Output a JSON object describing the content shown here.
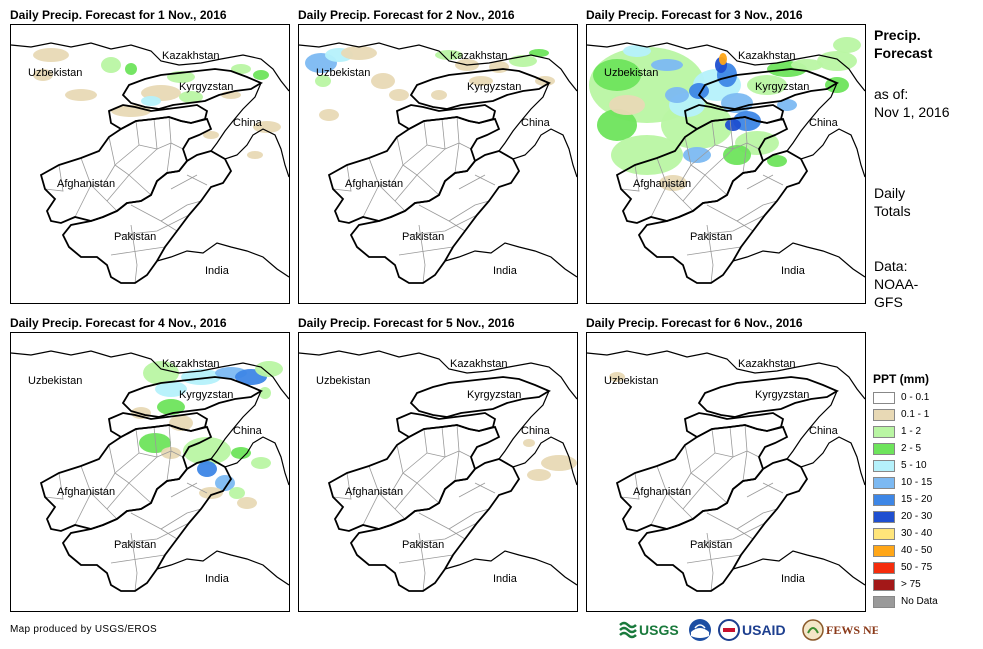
{
  "panels": [
    {
      "title": "Daily Precip. Forecast for 1 Nov., 2016",
      "precip": "d1"
    },
    {
      "title": "Daily Precip. Forecast for 2 Nov., 2016",
      "precip": "d2"
    },
    {
      "title": "Daily Precip. Forecast for 3 Nov., 2016",
      "precip": "d3"
    },
    {
      "title": "Daily Precip. Forecast for 4 Nov., 2016",
      "precip": "d4"
    },
    {
      "title": "Daily Precip. Forecast for 5 Nov., 2016",
      "precip": "d5"
    },
    {
      "title": "Daily Precip. Forecast for 6 Nov., 2016",
      "precip": "d6"
    }
  ],
  "countries": [
    "Kazakhstan",
    "Uzbekistan",
    "Kyrgyzstan",
    "China",
    "Afghanistan",
    "Pakistan",
    "India"
  ],
  "side": {
    "title_line1": "Precip.",
    "title_line2": "Forecast",
    "asof_line1": "as of:",
    "asof_line2": "Nov 1, 2016",
    "daily_line1": "Daily",
    "daily_line2": "Totals",
    "data_line1": "Data:",
    "data_line2": "NOAA-",
    "data_line3": "GFS"
  },
  "legend": {
    "title": "PPT (mm)",
    "items": [
      {
        "label": "0 - 0.1",
        "color": "#ffffff"
      },
      {
        "label": "0.1 - 1",
        "color": "#e8d9b5"
      },
      {
        "label": "1 - 2",
        "color": "#b9f5a3"
      },
      {
        "label": "2 - 5",
        "color": "#6ee45c"
      },
      {
        "label": "5 - 10",
        "color": "#b5f1fb"
      },
      {
        "label": "10 - 15",
        "color": "#7cb9f2"
      },
      {
        "label": "15 - 20",
        "color": "#3d86e6"
      },
      {
        "label": "20 - 30",
        "color": "#1f4fd0"
      },
      {
        "label": "30 - 40",
        "color": "#ffe57a"
      },
      {
        "label": "40 - 50",
        "color": "#ffa617"
      },
      {
        "label": "50 - 75",
        "color": "#f42c0c"
      },
      {
        "label": "> 75",
        "color": "#a31818"
      },
      {
        "label": "No Data",
        "color": "#9a9a9a"
      }
    ]
  },
  "credit": "Map produced by USGS/EROS",
  "logos": {
    "usgs": "USGS",
    "usaid": "USAID",
    "fewsnet": "FEWS NET"
  }
}
